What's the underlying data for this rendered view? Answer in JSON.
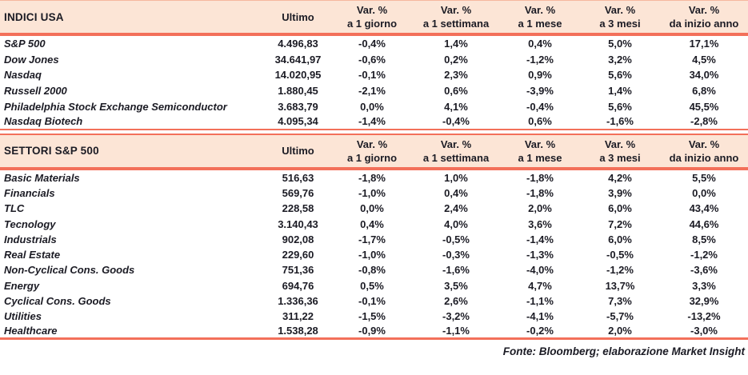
{
  "colors": {
    "header_bg": "#fce5d6",
    "rule": "#f3705a",
    "text": "#1b1b24"
  },
  "column_headers": {
    "ultimo": "Ultimo",
    "variation_label": "Var. %",
    "periods": [
      "a 1 giorno",
      "a 1 settimana",
      "a 1 mese",
      "a 3 mesi",
      "da inizio anno"
    ]
  },
  "sections": [
    {
      "id": "indici-usa",
      "title": "INDICI USA",
      "rows": [
        {
          "name": "S&P 500",
          "values": [
            "4.496,83",
            "-0,4%",
            "1,4%",
            "0,4%",
            "5,0%",
            "17,1%"
          ]
        },
        {
          "name": "Dow Jones",
          "values": [
            "34.641,97",
            "-0,6%",
            "0,2%",
            "-1,2%",
            "3,2%",
            "4,5%"
          ]
        },
        {
          "name": "Nasdaq",
          "values": [
            "14.020,95",
            "-0,1%",
            "2,3%",
            "0,9%",
            "5,6%",
            "34,0%"
          ]
        },
        {
          "name": "Russell 2000",
          "values": [
            "1.880,45",
            "-2,1%",
            "0,6%",
            "-3,9%",
            "1,4%",
            "6,8%"
          ]
        },
        {
          "name": "Philadelphia Stock Exchange Semiconductor",
          "values": [
            "3.683,79",
            "0,0%",
            "4,1%",
            "-0,4%",
            "5,6%",
            "45,5%"
          ]
        },
        {
          "name": "Nasdaq Biotech",
          "values": [
            "4.095,34",
            "-1,4%",
            "-0,4%",
            "0,6%",
            "-1,6%",
            "-2,8%"
          ]
        }
      ]
    },
    {
      "id": "settori-sp500",
      "title": "SETTORI S&P 500",
      "rows": [
        {
          "name": "Basic Materials",
          "values": [
            "516,63",
            "-1,8%",
            "1,0%",
            "-1,8%",
            "4,2%",
            "5,5%"
          ]
        },
        {
          "name": "Financials",
          "values": [
            "569,76",
            "-1,0%",
            "0,4%",
            "-1,8%",
            "3,9%",
            "0,0%"
          ]
        },
        {
          "name": "TLC",
          "values": [
            "228,58",
            "0,0%",
            "2,4%",
            "2,0%",
            "6,0%",
            "43,4%"
          ]
        },
        {
          "name": "Tecnology",
          "values": [
            "3.140,43",
            "0,4%",
            "4,0%",
            "3,6%",
            "7,2%",
            "44,6%"
          ]
        },
        {
          "name": "Industrials",
          "values": [
            "902,08",
            "-1,7%",
            "-0,5%",
            "-1,4%",
            "6,0%",
            "8,5%"
          ]
        },
        {
          "name": "Real Estate",
          "values": [
            "229,60",
            "-1,0%",
            "-0,3%",
            "-1,3%",
            "-0,5%",
            "-1,2%"
          ]
        },
        {
          "name": "Non-Cyclical Cons. Goods",
          "values": [
            "751,36",
            "-0,8%",
            "-1,6%",
            "-4,0%",
            "-1,2%",
            "-3,6%"
          ]
        },
        {
          "name": "Energy",
          "values": [
            "694,76",
            "0,5%",
            "3,5%",
            "4,7%",
            "13,7%",
            "3,3%"
          ]
        },
        {
          "name": "Cyclical Cons. Goods",
          "values": [
            "1.336,36",
            "-0,1%",
            "2,6%",
            "-1,1%",
            "7,3%",
            "32,9%"
          ]
        },
        {
          "name": "Utilities",
          "values": [
            "311,22",
            "-1,5%",
            "-3,2%",
            "-4,1%",
            "-5,7%",
            "-13,2%"
          ]
        },
        {
          "name": "Healthcare",
          "values": [
            "1.538,28",
            "-0,9%",
            "-1,1%",
            "-0,2%",
            "2,0%",
            "-3,0%"
          ]
        }
      ]
    }
  ],
  "footer": {
    "source": "Fonte: Bloomberg; elaborazione Market Insight"
  }
}
